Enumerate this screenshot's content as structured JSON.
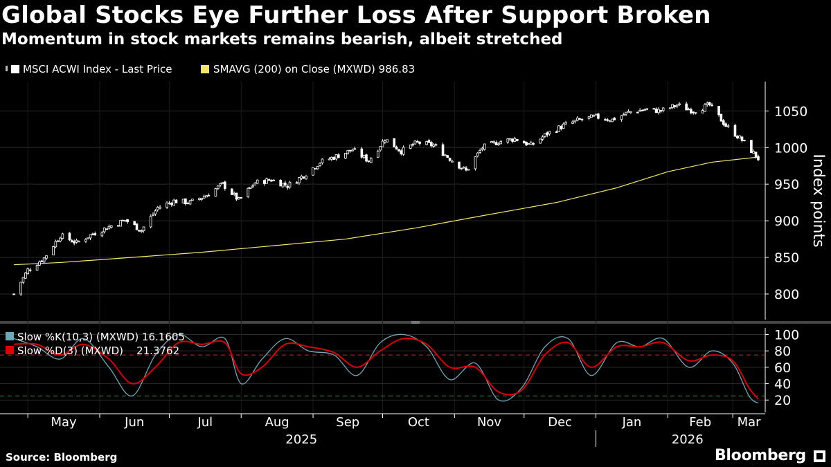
{
  "title": "Global Stocks Eye Further Loss After Support Broken",
  "subtitle": "Momentum in stock markets remains bearish, albeit stretched",
  "source": "Source: Bloomberg",
  "brand": "Bloomberg",
  "chart_data": [
    {
      "type": "line",
      "panel": "price",
      "legend": [
        {
          "name": "MSCI ACWI Index - Last Price",
          "color": "#ffffff",
          "marker": "candlestick"
        },
        {
          "name": "SMAVG (200)  on Close (MXWD) 986.83",
          "color": "#f5e66a"
        }
      ],
      "ylabel": "Index points",
      "yticks": [
        800,
        850,
        900,
        950,
        1000,
        1050
      ],
      "ylim": [
        765,
        1090
      ],
      "series": [
        {
          "name": "MSCI ACWI Index - Last Price",
          "style": "candlestick",
          "x": [
            "2025-04-25",
            "2025-05-01",
            "2025-05-08",
            "2025-05-15",
            "2025-05-22",
            "2025-05-29",
            "2025-06-05",
            "2025-06-12",
            "2025-06-19",
            "2025-06-26",
            "2025-07-03",
            "2025-07-10",
            "2025-07-17",
            "2025-07-24",
            "2025-07-31",
            "2025-08-07",
            "2025-08-14",
            "2025-08-21",
            "2025-08-28",
            "2025-09-04",
            "2025-09-11",
            "2025-09-18",
            "2025-09-25",
            "2025-10-02",
            "2025-10-09",
            "2025-10-16",
            "2025-10-23",
            "2025-10-30",
            "2025-11-06",
            "2025-11-13",
            "2025-11-20",
            "2025-11-27",
            "2025-12-04",
            "2025-12-11",
            "2025-12-18",
            "2025-12-25",
            "2026-01-01",
            "2026-01-08",
            "2026-01-15",
            "2026-01-22",
            "2026-01-29",
            "2026-02-05",
            "2026-02-12",
            "2026-02-19",
            "2026-02-26",
            "2026-03-05",
            "2026-03-12"
          ],
          "y": [
            800,
            833,
            849,
            880,
            870,
            882,
            892,
            901,
            887,
            918,
            927,
            925,
            935,
            950,
            928,
            952,
            956,
            948,
            962,
            980,
            988,
            997,
            982,
            1012,
            995,
            1007,
            1003,
            985,
            968,
            1000,
            1008,
            1012,
            1003,
            1019,
            1030,
            1038,
            1042,
            1038,
            1048,
            1052,
            1050,
            1058,
            1050,
            1058,
            1030,
            1010,
            985
          ]
        },
        {
          "name": "SMAVG (200)  on Close (MXWD) 986.83",
          "x": [
            "2025-04-25",
            "2025-05-15",
            "2025-06-15",
            "2025-07-15",
            "2025-08-15",
            "2025-09-15",
            "2025-10-15",
            "2025-11-15",
            "2025-12-15",
            "2026-01-10",
            "2026-02-01",
            "2026-02-20",
            "2026-03-12"
          ],
          "y": [
            840,
            843,
            850,
            857,
            866,
            875,
            890,
            908,
            925,
            945,
            967,
            980,
            987
          ]
        }
      ]
    },
    {
      "type": "line",
      "panel": "stochastic",
      "legend": [
        {
          "name": "Slow %K(10,3) (MXWD) 16.1605",
          "color": "#6fa8b8"
        },
        {
          "name": "Slow %D(3) (MXWD)    21.3762",
          "color": "#e00000"
        }
      ],
      "yticks": [
        20,
        40,
        60,
        80,
        100
      ],
      "ylim": [
        5,
        108
      ],
      "reference_lines": [
        75,
        25
      ],
      "series": [
        {
          "name": "Slow %K(10,3) (MXWD) 16.1605",
          "x": [
            "2025-04-25",
            "2025-05-05",
            "2025-05-15",
            "2025-05-25",
            "2025-06-05",
            "2025-06-15",
            "2025-06-25",
            "2025-07-05",
            "2025-07-15",
            "2025-07-25",
            "2025-08-01",
            "2025-08-10",
            "2025-08-20",
            "2025-08-30",
            "2025-09-10",
            "2025-09-20",
            "2025-09-30",
            "2025-10-10",
            "2025-10-20",
            "2025-10-30",
            "2025-11-10",
            "2025-11-20",
            "2025-11-30",
            "2025-12-10",
            "2025-12-20",
            "2025-12-30",
            "2026-01-10",
            "2026-01-20",
            "2026-01-30",
            "2026-02-10",
            "2026-02-20",
            "2026-03-01",
            "2026-03-08",
            "2026-03-12"
          ],
          "y": [
            95,
            85,
            70,
            95,
            60,
            25,
            75,
            100,
            85,
            95,
            40,
            70,
            95,
            80,
            75,
            50,
            90,
            100,
            85,
            45,
            65,
            20,
            35,
            85,
            95,
            50,
            90,
            85,
            95,
            60,
            80,
            65,
            25,
            16.16
          ]
        },
        {
          "name": "Slow %D(3) (MXWD)    21.3762",
          "x": [
            "2025-04-25",
            "2025-05-05",
            "2025-05-15",
            "2025-05-25",
            "2025-06-05",
            "2025-06-15",
            "2025-06-25",
            "2025-07-05",
            "2025-07-15",
            "2025-07-25",
            "2025-08-01",
            "2025-08-10",
            "2025-08-20",
            "2025-08-30",
            "2025-09-10",
            "2025-09-20",
            "2025-09-30",
            "2025-10-10",
            "2025-10-20",
            "2025-10-30",
            "2025-11-10",
            "2025-11-20",
            "2025-11-30",
            "2025-12-10",
            "2025-12-20",
            "2025-12-30",
            "2026-01-10",
            "2026-01-20",
            "2026-01-30",
            "2026-02-10",
            "2026-02-20",
            "2026-03-01",
            "2026-03-08",
            "2026-03-12"
          ],
          "y": [
            88,
            88,
            75,
            88,
            70,
            40,
            60,
            90,
            88,
            90,
            52,
            60,
            88,
            85,
            78,
            60,
            80,
            95,
            88,
            60,
            60,
            30,
            32,
            75,
            90,
            60,
            85,
            85,
            90,
            68,
            75,
            68,
            35,
            21.38
          ]
        }
      ]
    }
  ],
  "x_axis": {
    "months": [
      "May",
      "Jun",
      "Jul",
      "Aug",
      "Sep",
      "Oct",
      "Nov",
      "Dec",
      "Jan",
      "Feb",
      "Mar"
    ],
    "years": [
      "2025",
      "2026"
    ]
  },
  "colors": {
    "background": "#000000",
    "price": "#ffffff",
    "sma": "#f5e66a",
    "slow_k": "#6fa8b8",
    "slow_d": "#e00000",
    "grid": "#2a2a2a"
  }
}
